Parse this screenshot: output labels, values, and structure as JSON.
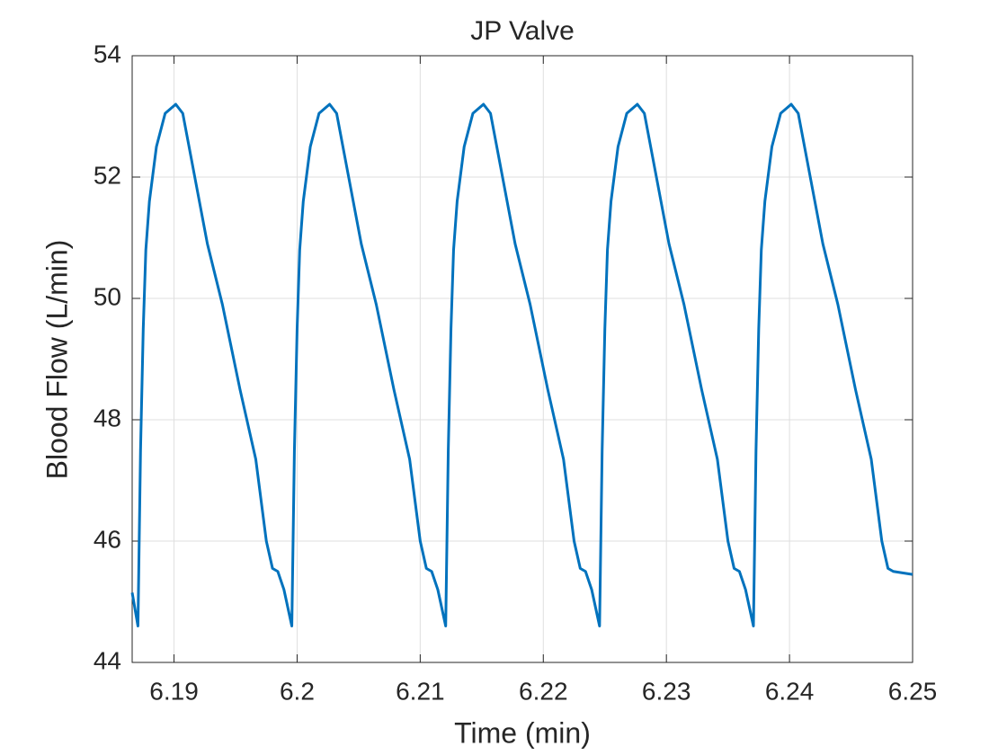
{
  "chart_data": {
    "type": "line",
    "title": "JP Valve",
    "xlabel": "Time (min)",
    "ylabel": "Blood Flow (L/min)",
    "x": [
      6.1866,
      6.18707,
      6.18728,
      6.1875,
      6.18771,
      6.188,
      6.18857,
      6.18928,
      6.19014,
      6.19071,
      6.19178,
      6.19271,
      6.19393,
      6.19536,
      6.19664,
      6.1975,
      6.198,
      6.19843,
      6.19893,
      6.19957,
      6.19978,
      6.2,
      6.20021,
      6.2005,
      6.20107,
      6.20178,
      6.20264,
      6.20321,
      6.20428,
      6.20521,
      6.20643,
      6.20786,
      6.20914,
      6.21,
      6.2105,
      6.21093,
      6.21143,
      6.21207,
      6.21228,
      6.2125,
      6.21271,
      6.213,
      6.21357,
      6.21428,
      6.21514,
      6.21571,
      6.21678,
      6.21771,
      6.21893,
      6.22036,
      6.22164,
      6.2225,
      6.223,
      6.22343,
      6.22393,
      6.22457,
      6.22478,
      6.225,
      6.22521,
      6.2255,
      6.22607,
      6.22678,
      6.22764,
      6.22821,
      6.22928,
      6.23021,
      6.23143,
      6.23286,
      6.23414,
      6.235,
      6.2355,
      6.23593,
      6.23643,
      6.23707,
      6.23728,
      6.2375,
      6.23771,
      6.238,
      6.23857,
      6.23928,
      6.24014,
      6.24071,
      6.24178,
      6.24271,
      6.24393,
      6.24536,
      6.24664,
      6.2475,
      6.248,
      6.24843,
      6.25
    ],
    "values": [
      45.15,
      44.6,
      47.5,
      49.5,
      50.8,
      51.6,
      52.5,
      53.05,
      53.2,
      53.05,
      51.9,
      50.9,
      49.9,
      48.5,
      47.35,
      46.0,
      45.55,
      45.5,
      45.2,
      44.6,
      47.5,
      49.5,
      50.8,
      51.6,
      52.5,
      53.05,
      53.2,
      53.05,
      51.9,
      50.9,
      49.9,
      48.5,
      47.35,
      46.0,
      45.55,
      45.5,
      45.2,
      44.6,
      47.5,
      49.5,
      50.8,
      51.6,
      52.5,
      53.05,
      53.2,
      53.05,
      51.9,
      50.9,
      49.9,
      48.5,
      47.35,
      46.0,
      45.55,
      45.5,
      45.2,
      44.6,
      47.5,
      49.5,
      50.8,
      51.6,
      52.5,
      53.05,
      53.2,
      53.05,
      51.9,
      50.9,
      49.9,
      48.5,
      47.35,
      46.0,
      45.55,
      45.5,
      45.2,
      44.6,
      47.5,
      49.5,
      50.8,
      51.6,
      52.5,
      53.05,
      53.2,
      53.05,
      51.9,
      50.9,
      49.9,
      48.5,
      47.35,
      46.0,
      45.55,
      45.5,
      45.45
    ],
    "color": "#0072bd",
    "xlim": [
      6.1866,
      6.25
    ],
    "xticks": [
      6.19,
      6.2,
      6.21,
      6.22,
      6.23,
      6.24,
      6.25
    ],
    "ylim": [
      44,
      54
    ],
    "yticks": [
      44,
      46,
      48,
      50,
      52,
      54
    ],
    "grid": true
  }
}
